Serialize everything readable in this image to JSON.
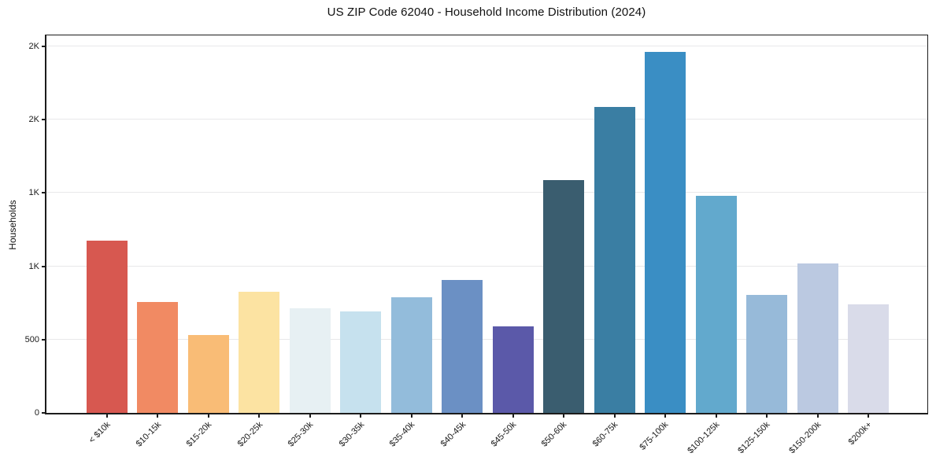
{
  "title": "US ZIP Code 62040 - Household Income Distribution (2024)",
  "chart_data": {
    "type": "bar",
    "title": "US ZIP Code 62040 - Household Income Distribution (2024)",
    "xlabel": "",
    "ylabel": "Households",
    "categories": [
      "< $10k",
      "$10-15k",
      "$15-20k",
      "$20-25k",
      "$25-30k",
      "$30-35k",
      "$35-40k",
      "$40-45k",
      "$45-50k",
      "$50-60k",
      "$60-75k",
      "$75-100k",
      "$100-125k",
      "$125-150k",
      "$150-200k",
      "$200k+"
    ],
    "values": [
      1175,
      755,
      530,
      825,
      715,
      690,
      790,
      905,
      590,
      1590,
      2085,
      2465,
      1480,
      805,
      1020,
      740
    ],
    "bar_colors": [
      "#d75850",
      "#f18a63",
      "#f9bc76",
      "#fce3a2",
      "#e7f0f3",
      "#c6e1ee",
      "#93bcdb",
      "#6b90c4",
      "#5b59a9",
      "#3a5d6f",
      "#3a7ea3",
      "#3a8ec4",
      "#62a9cd",
      "#97bad9",
      "#bbc9e1",
      "#d9dbe9"
    ],
    "ylim": [
      0,
      2590
    ],
    "yticks": [
      {
        "value": 0,
        "label": "0"
      },
      {
        "value": 500,
        "label": "500"
      },
      {
        "value": 1000,
        "label": "1K"
      },
      {
        "value": 1500,
        "label": "1K"
      },
      {
        "value": 2000,
        "label": "2K"
      },
      {
        "value": 2500,
        "label": "2K"
      }
    ],
    "grid": "horizontal",
    "legend": "none",
    "gridline_color": "#e8e8ea",
    "axis_color": "#1c1c1c",
    "text_color": "#1a1a1a",
    "background": "#ffffff",
    "x_label_rotation_deg": 45
  }
}
